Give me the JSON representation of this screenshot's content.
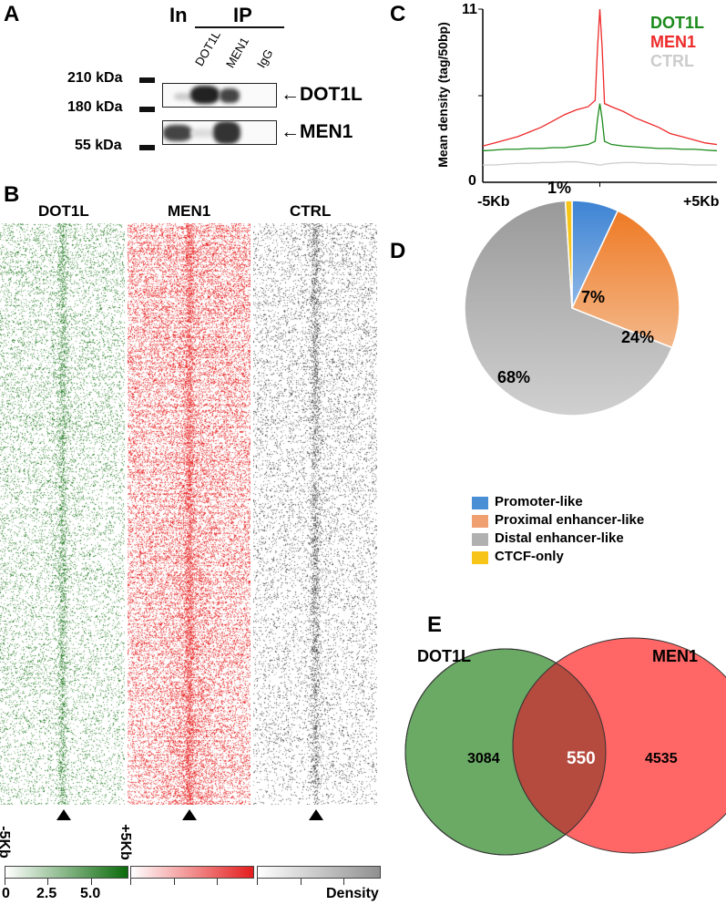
{
  "panel_a": {
    "label": "A",
    "input_label": "In",
    "ip_label": "IP",
    "lanes": [
      "DOT1L",
      "MEN1",
      "IgG"
    ],
    "markers": [
      "210 kDa",
      "180 kDa",
      "55 kDa"
    ],
    "blots": [
      "DOT1L",
      "MEN1"
    ]
  },
  "panel_b": {
    "label": "B",
    "heatmaps": [
      "DOT1L",
      "MEN1",
      "CTRL"
    ],
    "left_axis": "-5Kb",
    "right_axis": "+5Kb",
    "colorbar_ticks": [
      "0",
      "2.5",
      "5.0"
    ],
    "colorbar_label": "Density",
    "colors": {
      "dot1l": "#1e7a1e",
      "men1": "#e8262a",
      "ctrl": "#777777"
    }
  },
  "chart_data": [
    {
      "type": "line",
      "panel": "C",
      "ylabel": "Mean density (tag/50bp)",
      "xlabel": "",
      "x_tick_labels": [
        "-5Kb",
        "+5Kb"
      ],
      "y_tick_labels": [
        "0",
        "11"
      ],
      "xlim": [
        -5,
        5
      ],
      "ylim": [
        0,
        11
      ],
      "legend_position": "top-right",
      "x": [
        -5,
        -4.5,
        -4,
        -3.5,
        -3,
        -2.5,
        -2,
        -1.5,
        -1,
        -0.5,
        -0.2,
        -0.1,
        0,
        0.1,
        0.2,
        0.5,
        1,
        1.5,
        2,
        2.5,
        3,
        3.5,
        4,
        4.5,
        5
      ],
      "series": [
        {
          "name": "DOT1L",
          "color": "#1a8a1a",
          "values": [
            2.0,
            2.05,
            2.1,
            2.1,
            2.15,
            2.15,
            2.2,
            2.2,
            2.3,
            2.4,
            2.6,
            4.0,
            5.0,
            4.0,
            2.6,
            2.4,
            2.3,
            2.25,
            2.2,
            2.15,
            2.15,
            2.1,
            2.1,
            2.05,
            2.0
          ]
        },
        {
          "name": "MEN1",
          "color": "#ee2a2a",
          "values": [
            2.3,
            2.5,
            2.7,
            2.9,
            3.2,
            3.5,
            3.9,
            4.3,
            4.6,
            4.8,
            5.2,
            8.5,
            11.0,
            8.5,
            5.0,
            4.8,
            4.5,
            4.1,
            3.8,
            3.5,
            3.1,
            2.9,
            2.7,
            2.5,
            2.4
          ]
        },
        {
          "name": "CTRL",
          "color": "#cccccc",
          "values": [
            1.1,
            1.1,
            1.15,
            1.2,
            1.2,
            1.25,
            1.25,
            1.3,
            1.3,
            1.2,
            1.15,
            1.1,
            1.1,
            1.1,
            1.15,
            1.2,
            1.25,
            1.25,
            1.2,
            1.2,
            1.15,
            1.15,
            1.1,
            1.1,
            1.1
          ]
        }
      ]
    },
    {
      "type": "pie",
      "panel": "D",
      "categories": [
        "Promoter-like",
        "Proximal enhancer-like",
        "Distal enhancer-like",
        "CTCF-only"
      ],
      "values": [
        7,
        24,
        68,
        1
      ],
      "labels": [
        "7%",
        "24%",
        "68%",
        "1%"
      ],
      "colors": [
        "#4a8fd6",
        "#ee8a3c",
        "#aaaaaa",
        "#f7c51a"
      ],
      "legend_position": "bottom"
    },
    {
      "type": "venn",
      "panel": "E",
      "sets": [
        "DOT1L",
        "MEN1"
      ],
      "only_a": 3084,
      "overlap": 550,
      "only_b": 4535,
      "labels": [
        "3084",
        "550",
        "4535"
      ],
      "colors": [
        "#6aaa64",
        "#ff6666",
        "#b54a3e"
      ]
    }
  ],
  "panel_c": {
    "label": "C"
  },
  "panel_d": {
    "label": "D"
  },
  "panel_e": {
    "label": "E"
  }
}
